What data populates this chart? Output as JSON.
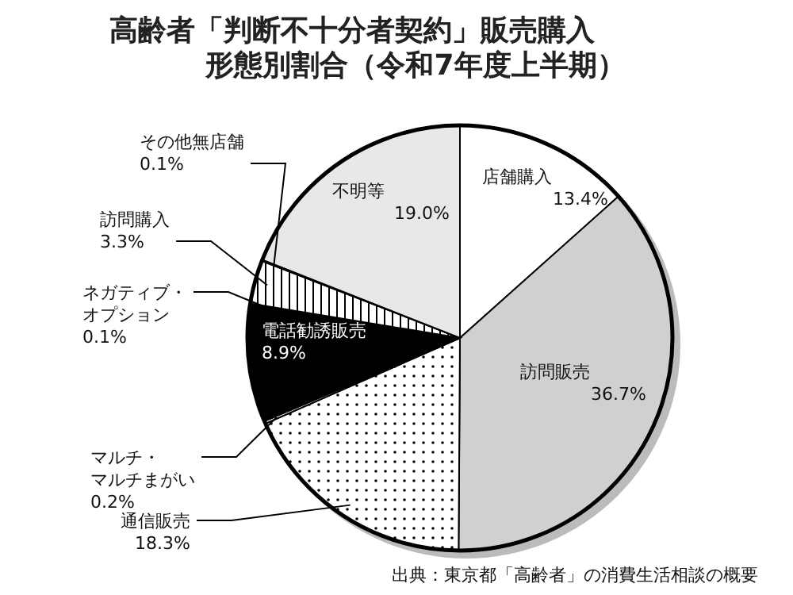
{
  "chart_data": {
    "type": "pie",
    "title": "高齢者「判断不十分者契約」販売購入形態別割合（令和7年度上半期）",
    "categories": [
      "店舗購入",
      "訪問販売",
      "通信販売",
      "マルチ・マルチまがい",
      "電話勧誘販売",
      "ネガティブ・オプション",
      "訪問購入",
      "その他無店舗",
      "不明等"
    ],
    "values": [
      13.4,
      36.7,
      18.3,
      0.2,
      8.9,
      0.1,
      3.3,
      0.1,
      19.0
    ],
    "value_labels": [
      "13.4%",
      "36.7%",
      "18.3%",
      "0.2%",
      "8.9%",
      "0.1%",
      "3.3%",
      "0.1%",
      "19.0%"
    ],
    "colors": [
      "#ffffff",
      "#d0d0d0",
      "#ffffff",
      "#ffffff",
      "#000000",
      "#ffffff",
      "#ffffff",
      "#ffffff",
      "#e8e8e8"
    ],
    "annotations": [
      "出典：東京都「高齢者」の消費生活相談の概要"
    ]
  }
}
